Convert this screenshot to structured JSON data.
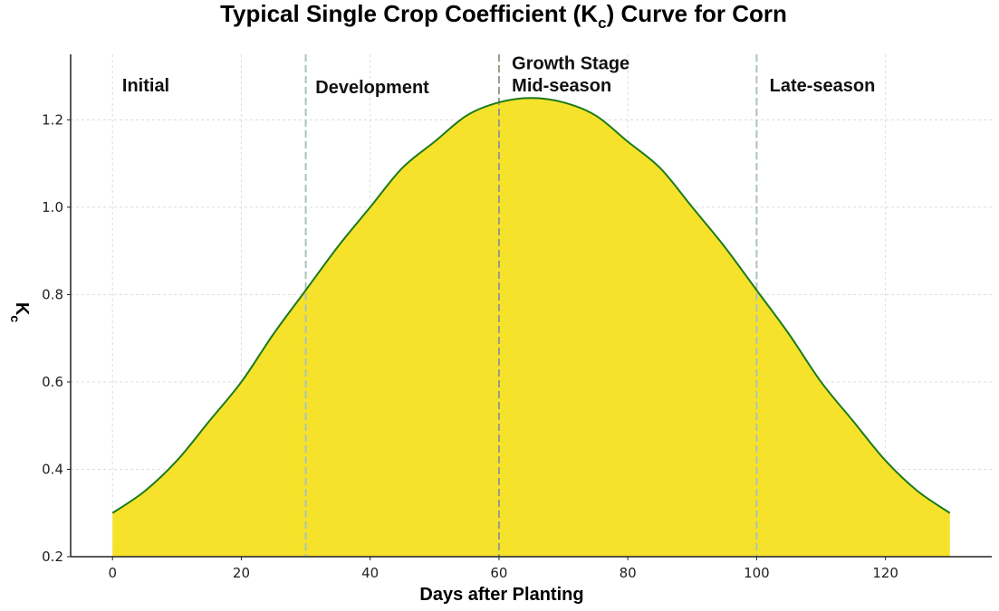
{
  "chart_data": {
    "type": "area",
    "title_main": "Typical Single Crop Coefficient (K",
    "title_sub": "c",
    "title_end": ") Curve for Corn",
    "xlabel": "Days after Planting",
    "ylabel_main": "K",
    "ylabel_sub": "c",
    "xlim": [
      -6.5,
      136.5
    ],
    "ylim": [
      0.2,
      1.35
    ],
    "xticks": [
      0,
      20,
      40,
      60,
      80,
      100,
      120
    ],
    "yticks": [
      0.2,
      0.4,
      0.6,
      0.8,
      1.0,
      1.2
    ],
    "grid": true,
    "x": [
      0,
      5,
      10,
      15,
      20,
      25,
      30,
      35,
      40,
      45,
      50,
      55,
      60,
      65,
      70,
      75,
      80,
      85,
      90,
      95,
      100,
      105,
      110,
      115,
      120,
      125,
      130
    ],
    "values": [
      0.3,
      0.35,
      0.42,
      0.51,
      0.6,
      0.71,
      0.81,
      0.91,
      1.0,
      1.09,
      1.15,
      1.21,
      1.24,
      1.25,
      1.24,
      1.21,
      1.15,
      1.09,
      1.0,
      0.91,
      0.81,
      0.71,
      0.6,
      0.51,
      0.42,
      0.35,
      0.3
    ],
    "stage_boundaries": [
      {
        "day": 30,
        "color": "#a9c4b9"
      },
      {
        "day": 60,
        "color": "#9a9a8a"
      },
      {
        "day": 100,
        "color": "#a9c4b9"
      }
    ],
    "stages": [
      {
        "label": "Initial",
        "day": 1.5,
        "kc": 1.28
      },
      {
        "label": "Development",
        "day": 31.5,
        "kc": 1.275
      },
      {
        "label": "Growth Stage",
        "day": 62,
        "kc": 1.33
      },
      {
        "label": "Mid-season",
        "day": 62,
        "kc": 1.28
      },
      {
        "label": "Late-season",
        "day": 102,
        "kc": 1.28
      }
    ],
    "colors": {
      "fill": "#f7e22b",
      "line": "#1b7a1b"
    }
  }
}
